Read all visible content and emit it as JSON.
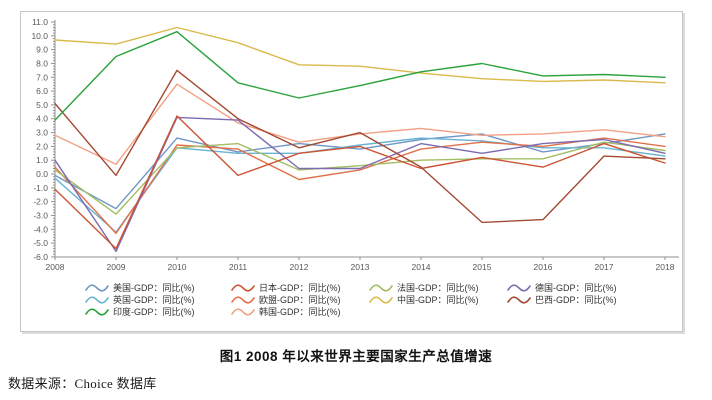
{
  "caption": {
    "title": "图1 2008 年以来世界主要国家生产总值增速"
  },
  "source": {
    "text": "数据来源：Choice 数据库"
  },
  "chart_data": {
    "type": "line",
    "title": "图1 2008 年以来世界主要国家生产总值增速",
    "x_tick_labels": [
      "2008",
      "2009",
      "2010",
      "2011",
      "2012",
      "2013",
      "2014",
      "2015",
      "2016",
      "2017",
      "2018"
    ],
    "y_tick_labels": [
      "11.0",
      "10.0",
      "9.0",
      "8.0",
      "7.0",
      "6.0",
      "5.0",
      "4.0",
      "3.0",
      "2.0",
      "1.0",
      "0.0",
      "-1.0",
      "-2.0",
      "-3.0",
      "-4.0",
      "-5.0",
      "-6.0"
    ],
    "ylim": [
      -6.0,
      11.0
    ],
    "y_tick_step": 1.0,
    "grid": false,
    "legend_position": "bottom",
    "series": [
      {
        "name": "美国-GDP：同比(%)",
        "color": "#7097c6",
        "values": [
          -0.1,
          -2.5,
          2.6,
          1.6,
          2.2,
          1.8,
          2.5,
          2.9,
          1.6,
          2.2,
          2.9
        ]
      },
      {
        "name": "英国-GDP：同比(%)",
        "color": "#68b4d2",
        "values": [
          -0.3,
          -4.2,
          1.9,
          1.5,
          1.5,
          2.1,
          2.6,
          2.4,
          1.9,
          1.9,
          1.3
        ]
      },
      {
        "name": "印度-GDP：同比(%)",
        "color": "#2aa23a",
        "values": [
          3.9,
          8.5,
          10.3,
          6.6,
          5.5,
          6.4,
          7.4,
          8.0,
          7.1,
          7.2,
          7.0
        ]
      },
      {
        "name": "日本-GDP：同比(%)",
        "color": "#cc5434",
        "values": [
          -1.1,
          -5.4,
          4.2,
          -0.1,
          1.5,
          2.0,
          0.4,
          1.2,
          0.5,
          2.2,
          0.8
        ]
      },
      {
        "name": "欧盟-GDP：同比(%)",
        "color": "#e1714b",
        "values": [
          0.5,
          -4.3,
          2.1,
          1.8,
          -0.4,
          0.3,
          1.8,
          2.3,
          2.0,
          2.6,
          2.0
        ]
      },
      {
        "name": "韩国-GDP：同比(%)",
        "color": "#f2a183",
        "values": [
          2.8,
          0.7,
          6.5,
          3.7,
          2.3,
          2.9,
          3.3,
          2.8,
          2.9,
          3.2,
          2.7
        ]
      },
      {
        "name": "法国-GDP：同比(%)",
        "color": "#a3bd62",
        "values": [
          0.3,
          -2.9,
          1.9,
          2.2,
          0.3,
          0.6,
          1.0,
          1.1,
          1.1,
          2.3,
          1.7
        ]
      },
      {
        "name": "中国-GDP：同比(%)",
        "color": "#d9ba4a",
        "values": [
          9.7,
          9.4,
          10.6,
          9.5,
          7.9,
          7.8,
          7.3,
          6.9,
          6.7,
          6.8,
          6.6
        ]
      },
      {
        "name": "德国-GDP：同比(%)",
        "color": "#7d6bb0",
        "values": [
          1.0,
          -5.6,
          4.1,
          3.9,
          0.4,
          0.4,
          2.2,
          1.5,
          2.2,
          2.5,
          1.5
        ]
      },
      {
        "name": "巴西-GDP：同比(%)",
        "color": "#a34a31",
        "values": [
          5.1,
          -0.1,
          7.5,
          4.0,
          1.9,
          3.0,
          0.5,
          -3.5,
          -3.3,
          1.3,
          1.1
        ]
      }
    ]
  }
}
